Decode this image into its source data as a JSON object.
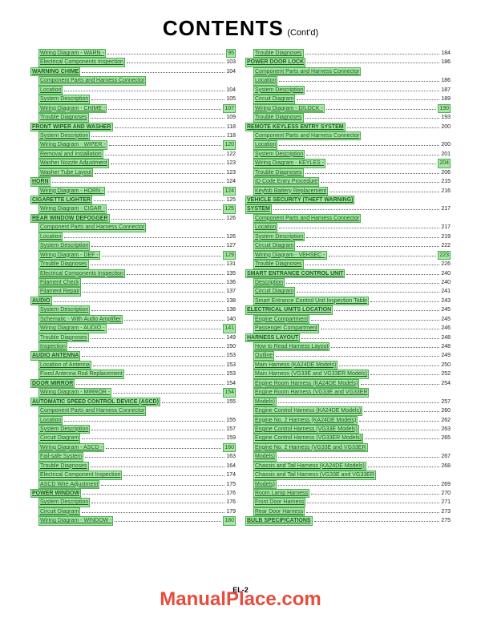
{
  "title_main": "CONTENTS",
  "title_sub": "(Cont'd)",
  "page_number": "EL-2",
  "watermark": "ManualPlace.com",
  "left": [
    {
      "t": "item",
      "ind": 1,
      "label": "Wiring Diagram - WARN -",
      "page": "95",
      "gp": 1
    },
    {
      "t": "item",
      "ind": 1,
      "label": "Electrical Components Inspection",
      "page": "103",
      "gp": 0
    },
    {
      "t": "sec",
      "label": "WARNING CHIME",
      "page": "104"
    },
    {
      "t": "item",
      "ind": 1,
      "label": "Component Parts and Harness Connector",
      "page": "",
      "gp": 0,
      "nodots": 1
    },
    {
      "t": "item",
      "ind": 1,
      "label": "Location",
      "page": "104",
      "gp": 0
    },
    {
      "t": "item",
      "ind": 1,
      "label": "System Description",
      "page": "105",
      "gp": 0
    },
    {
      "t": "item",
      "ind": 1,
      "label": "Wiring Diagram - CHIME -",
      "page": "107",
      "gp": 1
    },
    {
      "t": "item",
      "ind": 1,
      "label": "Trouble Diagnoses",
      "page": "109",
      "gp": 0
    },
    {
      "t": "sec",
      "label": "FRONT WIPER AND WASHER",
      "page": "118"
    },
    {
      "t": "item",
      "ind": 1,
      "label": "System Description",
      "page": "118",
      "gp": 0
    },
    {
      "t": "item",
      "ind": 1,
      "label": "Wiring Diagram - WIPER -",
      "page": "120",
      "gp": 1
    },
    {
      "t": "item",
      "ind": 1,
      "label": "Removal and Installation",
      "page": "122",
      "gp": 0
    },
    {
      "t": "item",
      "ind": 1,
      "label": "Washer Nozzle Adjustment",
      "page": "123",
      "gp": 0
    },
    {
      "t": "item",
      "ind": 1,
      "label": "Washer Tube Layout",
      "page": "123",
      "gp": 0
    },
    {
      "t": "sec",
      "label": "HORN",
      "page": "124"
    },
    {
      "t": "item",
      "ind": 1,
      "label": "Wiring Diagram - HORN -",
      "page": "124",
      "gp": 1
    },
    {
      "t": "sec",
      "label": "CIGARETTE LIGHTER",
      "page": "125"
    },
    {
      "t": "item",
      "ind": 1,
      "label": "Wiring Diagram - CIGAR -",
      "page": "125",
      "gp": 1
    },
    {
      "t": "sec",
      "label": "REAR WINDOW DEFOGGER",
      "page": "126"
    },
    {
      "t": "item",
      "ind": 1,
      "label": "Component Parts and Harness Connector",
      "page": "",
      "gp": 0,
      "nodots": 1
    },
    {
      "t": "item",
      "ind": 1,
      "label": "Location",
      "page": "126",
      "gp": 0
    },
    {
      "t": "item",
      "ind": 1,
      "label": "System Description",
      "page": "127",
      "gp": 0
    },
    {
      "t": "item",
      "ind": 1,
      "label": "Wiring Diagram - DEF -",
      "page": "129",
      "gp": 1
    },
    {
      "t": "item",
      "ind": 1,
      "label": "Trouble Diagnoses",
      "page": "131",
      "gp": 0
    },
    {
      "t": "item",
      "ind": 1,
      "label": "Electrical Components Inspection",
      "page": "135",
      "gp": 0
    },
    {
      "t": "item",
      "ind": 1,
      "label": "Filament Check",
      "page": "136",
      "gp": 0
    },
    {
      "t": "item",
      "ind": 1,
      "label": "Filament Repair",
      "page": "137",
      "gp": 0
    },
    {
      "t": "sec",
      "label": "AUDIO",
      "page": "138"
    },
    {
      "t": "item",
      "ind": 1,
      "label": "System Description",
      "page": "138",
      "gp": 0
    },
    {
      "t": "item",
      "ind": 1,
      "label": "Schematic - With Audio Amplifier",
      "page": "140",
      "gp": 0
    },
    {
      "t": "item",
      "ind": 1,
      "label": "Wiring Diagram - AUDIO -",
      "page": "141",
      "gp": 1
    },
    {
      "t": "item",
      "ind": 1,
      "label": "Trouble Diagnoses",
      "page": "149",
      "gp": 0
    },
    {
      "t": "item",
      "ind": 1,
      "label": "Inspection",
      "page": "150",
      "gp": 0
    },
    {
      "t": "sec",
      "label": "AUDIO ANTENNA",
      "page": "153"
    },
    {
      "t": "item",
      "ind": 1,
      "label": "Location of Antenna",
      "page": "153",
      "gp": 0
    },
    {
      "t": "item",
      "ind": 1,
      "label": "Fixed Antenna Rod Replacement",
      "page": "153",
      "gp": 0
    },
    {
      "t": "sec",
      "label": "DOOR MIRROR",
      "page": "154"
    },
    {
      "t": "item",
      "ind": 1,
      "label": "Wiring Diagram - MIRROR -",
      "page": "154",
      "gp": 1
    },
    {
      "t": "sec",
      "label": "AUTOMATIC SPEED CONTROL DEVICE (ASCD)",
      "page": "155"
    },
    {
      "t": "item",
      "ind": 1,
      "label": "Component Parts and Harness Connector",
      "page": "",
      "gp": 0,
      "nodots": 1
    },
    {
      "t": "item",
      "ind": 1,
      "label": "Location",
      "page": "155",
      "gp": 0
    },
    {
      "t": "item",
      "ind": 1,
      "label": "System Description",
      "page": "157",
      "gp": 0
    },
    {
      "t": "item",
      "ind": 1,
      "label": "Circuit Diagram",
      "page": "159",
      "gp": 0
    },
    {
      "t": "item",
      "ind": 1,
      "label": "Wiring Diagram - ASCD -",
      "page": "160",
      "gp": 1
    },
    {
      "t": "item",
      "ind": 1,
      "label": "Fail-safe System",
      "page": "163",
      "gp": 0
    },
    {
      "t": "item",
      "ind": 1,
      "label": "Trouble Diagnoses",
      "page": "164",
      "gp": 0
    },
    {
      "t": "item",
      "ind": 1,
      "label": "Electrical Component Inspection",
      "page": "174",
      "gp": 0
    },
    {
      "t": "item",
      "ind": 1,
      "label": "ASCD Wire Adjustment",
      "page": "175",
      "gp": 0
    },
    {
      "t": "sec",
      "label": "POWER WINDOW",
      "page": "176"
    },
    {
      "t": "item",
      "ind": 1,
      "label": "System Description",
      "page": "176",
      "gp": 0
    },
    {
      "t": "item",
      "ind": 1,
      "label": "Circuit Diagram",
      "page": "179",
      "gp": 0
    },
    {
      "t": "item",
      "ind": 1,
      "label": "Wiring Diagram - WINDOW -",
      "page": "180",
      "gp": 1
    }
  ],
  "right": [
    {
      "t": "item",
      "ind": 1,
      "label": "Trouble Diagnoses",
      "page": "184",
      "gp": 0
    },
    {
      "t": "sec",
      "label": "POWER DOOR LOCK",
      "page": "186"
    },
    {
      "t": "item",
      "ind": 1,
      "label": "Component Parts and Harness Connector",
      "page": "",
      "gp": 0,
      "nodots": 1
    },
    {
      "t": "item",
      "ind": 1,
      "label": "Location",
      "page": "186",
      "gp": 0
    },
    {
      "t": "item",
      "ind": 1,
      "label": "System Description",
      "page": "187",
      "gp": 0
    },
    {
      "t": "item",
      "ind": 1,
      "label": "Circuit Diagram",
      "page": "189",
      "gp": 0
    },
    {
      "t": "item",
      "ind": 1,
      "label": "Wiring Diagram - D/LOCK -",
      "page": "190",
      "gp": 1
    },
    {
      "t": "item",
      "ind": 1,
      "label": "Trouble Diagnoses",
      "page": "193",
      "gp": 0
    },
    {
      "t": "sec",
      "label": "REMOTE KEYLESS ENTRY SYSTEM",
      "page": "200"
    },
    {
      "t": "item",
      "ind": 1,
      "label": "Component Parts and Harness Connector",
      "page": "",
      "gp": 0,
      "nodots": 1
    },
    {
      "t": "item",
      "ind": 1,
      "label": "Location",
      "page": "200",
      "gp": 0
    },
    {
      "t": "item",
      "ind": 1,
      "label": "System Description",
      "page": "201",
      "gp": 0
    },
    {
      "t": "item",
      "ind": 1,
      "label": "Wiring Diagram - KEYLES -",
      "page": "204",
      "gp": 1
    },
    {
      "t": "item",
      "ind": 1,
      "label": "Trouble Diagnoses",
      "page": "206",
      "gp": 0
    },
    {
      "t": "item",
      "ind": 1,
      "label": "ID Code Entry Procedure",
      "page": "215",
      "gp": 0
    },
    {
      "t": "item",
      "ind": 1,
      "label": "Keyfob Battery Replacement",
      "page": "216",
      "gp": 0
    },
    {
      "t": "sec",
      "label": "VEHICLE SECURITY (THEFT WARNING)",
      "page": "",
      "nodots": 1
    },
    {
      "t": "sec",
      "label": "SYSTEM",
      "page": "217"
    },
    {
      "t": "item",
      "ind": 1,
      "label": "Component Parts and Harness Connector",
      "page": "",
      "gp": 0,
      "nodots": 1
    },
    {
      "t": "item",
      "ind": 1,
      "label": "Location",
      "page": "217",
      "gp": 0
    },
    {
      "t": "item",
      "ind": 1,
      "label": "System Description",
      "page": "219",
      "gp": 0
    },
    {
      "t": "item",
      "ind": 1,
      "label": "Circuit Diagram",
      "page": "222",
      "gp": 0
    },
    {
      "t": "item",
      "ind": 1,
      "label": "Wiring Diagram - VEHSEC -",
      "page": "223",
      "gp": 1
    },
    {
      "t": "item",
      "ind": 1,
      "label": "Trouble Diagnoses",
      "page": "226",
      "gp": 0
    },
    {
      "t": "sec",
      "label": "SMART ENTRANCE CONTROL UNIT",
      "page": "240"
    },
    {
      "t": "item",
      "ind": 1,
      "label": "Description",
      "page": "240",
      "gp": 0
    },
    {
      "t": "item",
      "ind": 1,
      "label": "Circuit Diagram",
      "page": "241",
      "gp": 0
    },
    {
      "t": "item",
      "ind": 1,
      "label": "Smart Entrance Control Unit Inspection Table",
      "page": "243",
      "gp": 0
    },
    {
      "t": "sec",
      "label": "ELECTRICAL UNITS LOCATION",
      "page": "245"
    },
    {
      "t": "item",
      "ind": 1,
      "label": "Engine Compartment",
      "page": "245",
      "gp": 0
    },
    {
      "t": "item",
      "ind": 1,
      "label": "Passenger Compartment",
      "page": "246",
      "gp": 0
    },
    {
      "t": "sec",
      "label": "HARNESS LAYOUT",
      "page": "248"
    },
    {
      "t": "item",
      "ind": 1,
      "label": "How to Read Harness Layout",
      "page": "248",
      "gp": 0
    },
    {
      "t": "item",
      "ind": 1,
      "label": "Outline",
      "page": "249",
      "gp": 0
    },
    {
      "t": "item",
      "ind": 1,
      "label": "Main Harness (KA24DE Models)",
      "page": "250",
      "gp": 0
    },
    {
      "t": "item",
      "ind": 1,
      "label": "Main Harness (VG33E and VG33ER Models)",
      "page": "252",
      "gp": 0
    },
    {
      "t": "item",
      "ind": 1,
      "label": "Engine Room Harness (KA24DE Models)",
      "page": "254",
      "gp": 0
    },
    {
      "t": "item",
      "ind": 1,
      "label": "Engine Room Harness (VG33E and VG33ER",
      "page": "",
      "gp": 0,
      "nodots": 1
    },
    {
      "t": "item",
      "ind": 1,
      "label": "Models)",
      "page": "257",
      "gp": 0
    },
    {
      "t": "item",
      "ind": 1,
      "label": "Engine Control Harness (KA24DE Models)",
      "page": "260",
      "gp": 0
    },
    {
      "t": "item",
      "ind": 1,
      "label": "Engine No. 2 Harness (KA24DE Models)",
      "page": "262",
      "gp": 0
    },
    {
      "t": "item",
      "ind": 1,
      "label": "Engine Control Harness (VG33E Models)",
      "page": "263",
      "gp": 0
    },
    {
      "t": "item",
      "ind": 1,
      "label": "Engine Control Harness (VG33ER Models)",
      "page": "265",
      "gp": 0
    },
    {
      "t": "item",
      "ind": 1,
      "label": "Engine No. 2 Harness (VG33E and VG33ER",
      "page": "",
      "gp": 0,
      "nodots": 1
    },
    {
      "t": "item",
      "ind": 1,
      "label": "Models)",
      "page": "267",
      "gp": 0
    },
    {
      "t": "item",
      "ind": 1,
      "label": "Chassis and Tail Harness (KA24DE Models)",
      "page": "268",
      "gp": 0
    },
    {
      "t": "item",
      "ind": 1,
      "label": "Chassis and Tail Harness (VG33E and VG33ER",
      "page": "",
      "gp": 0,
      "nodots": 1
    },
    {
      "t": "item",
      "ind": 1,
      "label": "Models)",
      "page": "269",
      "gp": 0
    },
    {
      "t": "item",
      "ind": 1,
      "label": "Room Lamp Harness",
      "page": "270",
      "gp": 0
    },
    {
      "t": "item",
      "ind": 1,
      "label": "Front Door Harness",
      "page": "271",
      "gp": 0
    },
    {
      "t": "item",
      "ind": 1,
      "label": "Rear Door Harness",
      "page": "273",
      "gp": 0
    },
    {
      "t": "sec",
      "label": "BULB SPECIFICATIONS",
      "page": "275"
    }
  ]
}
